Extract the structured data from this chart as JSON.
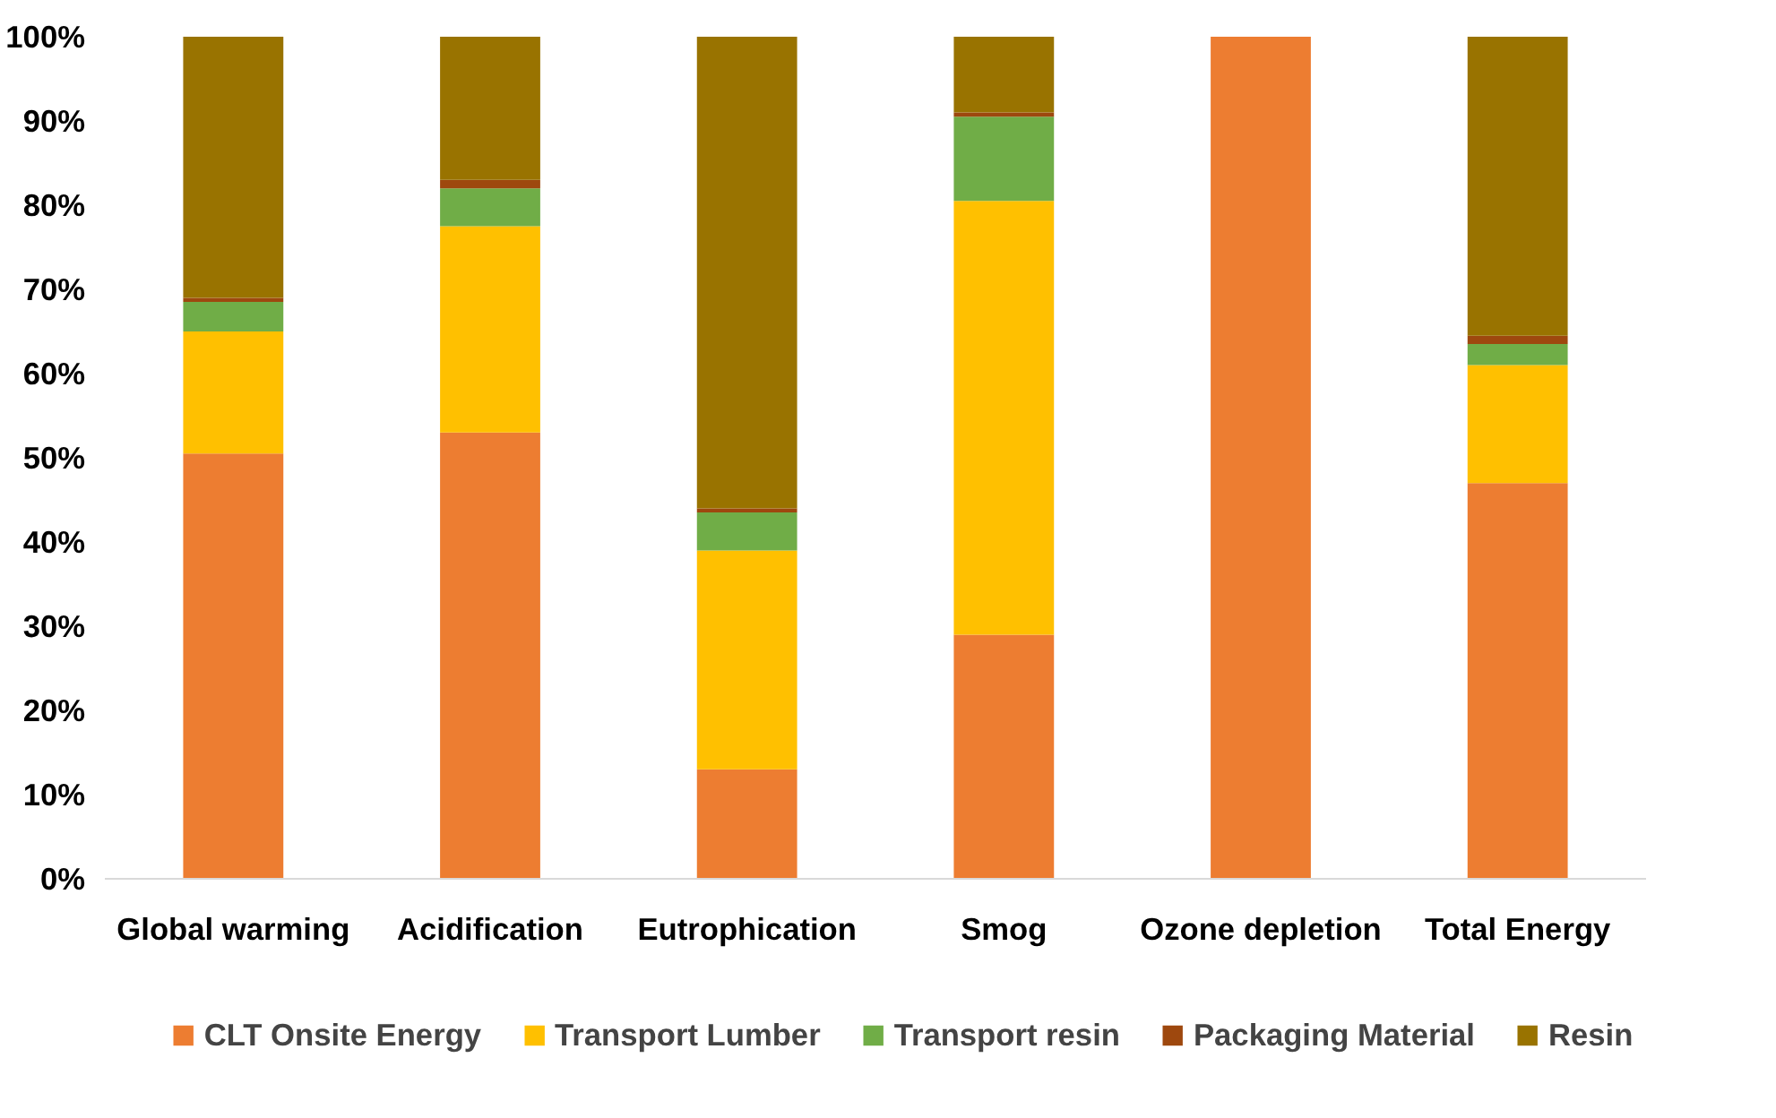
{
  "chart_data": {
    "type": "bar",
    "stacked": true,
    "categories": [
      "Global warming",
      "Acidification",
      "Eutrophication",
      "Smog",
      "Ozone depletion",
      "Total Energy"
    ],
    "series": [
      {
        "name": "CLT Onsite Energy",
        "color": "#ed7d31",
        "values": [
          50.5,
          53,
          13,
          29,
          100,
          47
        ]
      },
      {
        "name": "Transport Lumber",
        "color": "#ffc000",
        "values": [
          14.5,
          24.5,
          26,
          51.5,
          0,
          14
        ]
      },
      {
        "name": "Transport resin",
        "color": "#70ad47",
        "values": [
          3.5,
          4.5,
          4.5,
          10,
          0,
          2.5
        ]
      },
      {
        "name": "Packaging Material",
        "color": "#9e480e",
        "values": [
          0.5,
          1,
          0.5,
          0.5,
          0,
          1
        ]
      },
      {
        "name": "Resin",
        "color": "#997300",
        "values": [
          31,
          17,
          56,
          9,
          0,
          35.5
        ]
      }
    ],
    "ylim": [
      0,
      100
    ],
    "yticks": [
      {
        "value": 0,
        "label": "0%"
      },
      {
        "value": 10,
        "label": "10%"
      },
      {
        "value": 20,
        "label": "20%"
      },
      {
        "value": 30,
        "label": "30%"
      },
      {
        "value": 40,
        "label": "40%"
      },
      {
        "value": 50,
        "label": "50%"
      },
      {
        "value": 60,
        "label": "60%"
      },
      {
        "value": 70,
        "label": "70%"
      },
      {
        "value": 80,
        "label": "80%"
      },
      {
        "value": 90,
        "label": "90%"
      },
      {
        "value": 100,
        "label": "100%"
      }
    ],
    "grid": false,
    "legend": "bottom"
  }
}
